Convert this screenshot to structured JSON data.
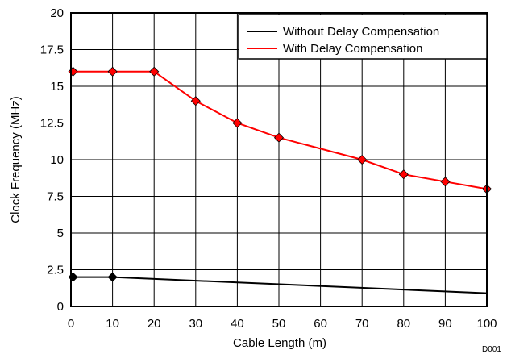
{
  "chart_data": {
    "type": "line",
    "xlabel": "Cable Length (m)",
    "ylabel": "Clock Frequency (MHz)",
    "xlim": [
      0,
      100
    ],
    "ylim": [
      0,
      20
    ],
    "x_ticks": [
      0,
      10,
      20,
      30,
      40,
      50,
      60,
      70,
      80,
      90,
      100
    ],
    "y_ticks": [
      0,
      2.5,
      5,
      7.5,
      10,
      12.5,
      15,
      17.5,
      20
    ],
    "x_tick_labels": [
      "0",
      "10",
      "20",
      "30",
      "40",
      "50",
      "60",
      "70",
      "80",
      "90",
      "100"
    ],
    "y_tick_labels": [
      "0",
      "2.5",
      "5",
      "7.5",
      "10",
      "12.5",
      "15",
      "17.5",
      "20"
    ],
    "grid": true,
    "legend_position": "top-right",
    "series": [
      {
        "name": "Without Delay Compensation",
        "color": "#000000",
        "x": [
          0.5,
          10,
          100
        ],
        "y": [
          2,
          2,
          0.9
        ],
        "markers": [
          true,
          true,
          false
        ]
      },
      {
        "name": "With Delay Compensation",
        "color": "#ff0000",
        "x": [
          0.5,
          10,
          20,
          30,
          40,
          50,
          70,
          80,
          90,
          100
        ],
        "y": [
          16,
          16,
          16,
          14,
          12.5,
          11.5,
          10,
          9,
          8.5,
          8
        ],
        "markers": [
          true,
          true,
          true,
          true,
          true,
          true,
          true,
          true,
          true,
          true
        ]
      }
    ],
    "marker_color": "#000000",
    "annotation": "D001"
  }
}
